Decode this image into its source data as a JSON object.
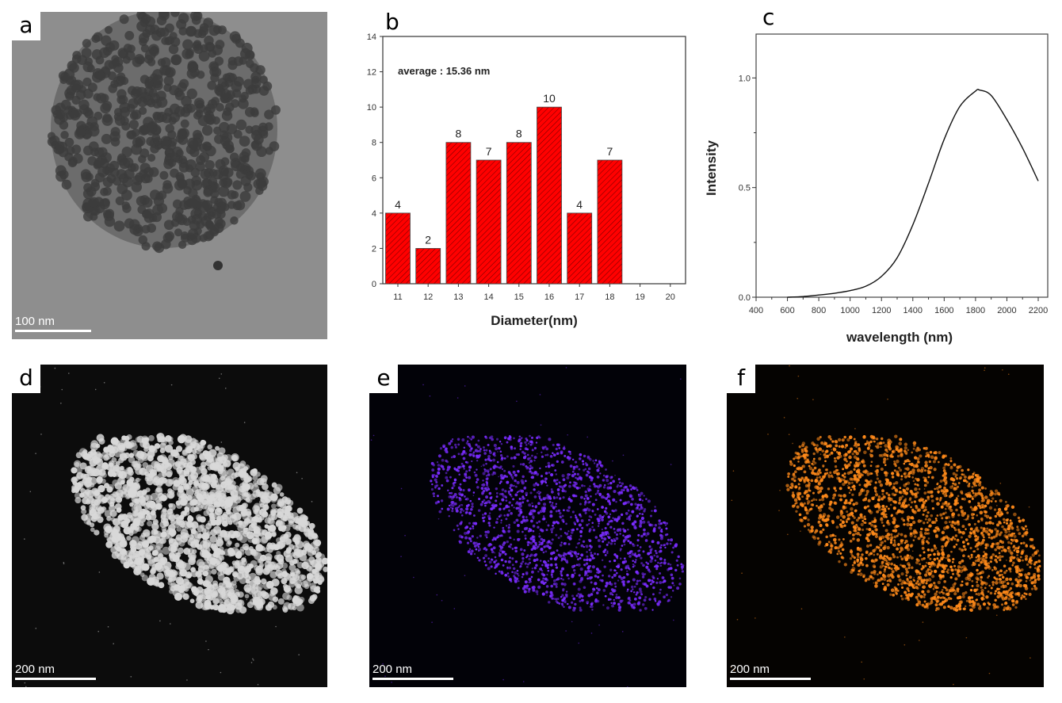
{
  "panels": {
    "a": {
      "label": "a",
      "scale_bar": "100 nm"
    },
    "b": {
      "label": "b"
    },
    "c": {
      "label": "c"
    },
    "d": {
      "label": "d",
      "scale_bar": "200 nm"
    },
    "e": {
      "label": "e",
      "scale_bar": "200 nm"
    },
    "f": {
      "label": "f",
      "scale_bar": "200 nm"
    }
  },
  "colors": {
    "bar_fill": "#ff0000",
    "map_e": "#7a2cff",
    "map_f": "#ff8a1a"
  },
  "chart_data": [
    {
      "type": "bar",
      "title": "",
      "annotation": "average : 15.36 nm",
      "xlabel": "Diameter(nm)",
      "ylabel": "",
      "categories": [
        "11",
        "12",
        "13",
        "14",
        "15",
        "16",
        "17",
        "18",
        "19",
        "20"
      ],
      "values": [
        4,
        2,
        8,
        7,
        8,
        10,
        4,
        7,
        null,
        null
      ],
      "data_labels": [
        "4",
        "2",
        "8",
        "7",
        "8",
        "10",
        "4",
        "7",
        "",
        ""
      ],
      "ylim": [
        0,
        14
      ],
      "yticks": [
        "0",
        "2",
        "4",
        "6",
        "8",
        "10",
        "12",
        "14"
      ],
      "bar_pattern": "diagonal-hatch",
      "grid": false
    },
    {
      "type": "line",
      "title": "",
      "xlabel": "wavelength (nm)",
      "ylabel": "Intensity",
      "x": [
        600,
        700,
        800,
        900,
        1000,
        1100,
        1200,
        1300,
        1400,
        1500,
        1600,
        1700,
        1800,
        1825,
        1900,
        2000,
        2100,
        2200
      ],
      "y": [
        0,
        0.003,
        0.01,
        0.018,
        0.03,
        0.05,
        0.095,
        0.18,
        0.33,
        0.52,
        0.72,
        0.87,
        0.94,
        0.945,
        0.92,
        0.81,
        0.68,
        0.53
      ],
      "xlim": [
        400,
        2230
      ],
      "ylim": [
        0,
        1.2
      ],
      "xticks": [
        "400",
        "600",
        "800",
        "1000",
        "1200",
        "1400",
        "1600",
        "1800",
        "2000",
        "2200"
      ],
      "yticks": [
        "0.0",
        "0.5",
        "1.0"
      ],
      "grid": false
    }
  ]
}
